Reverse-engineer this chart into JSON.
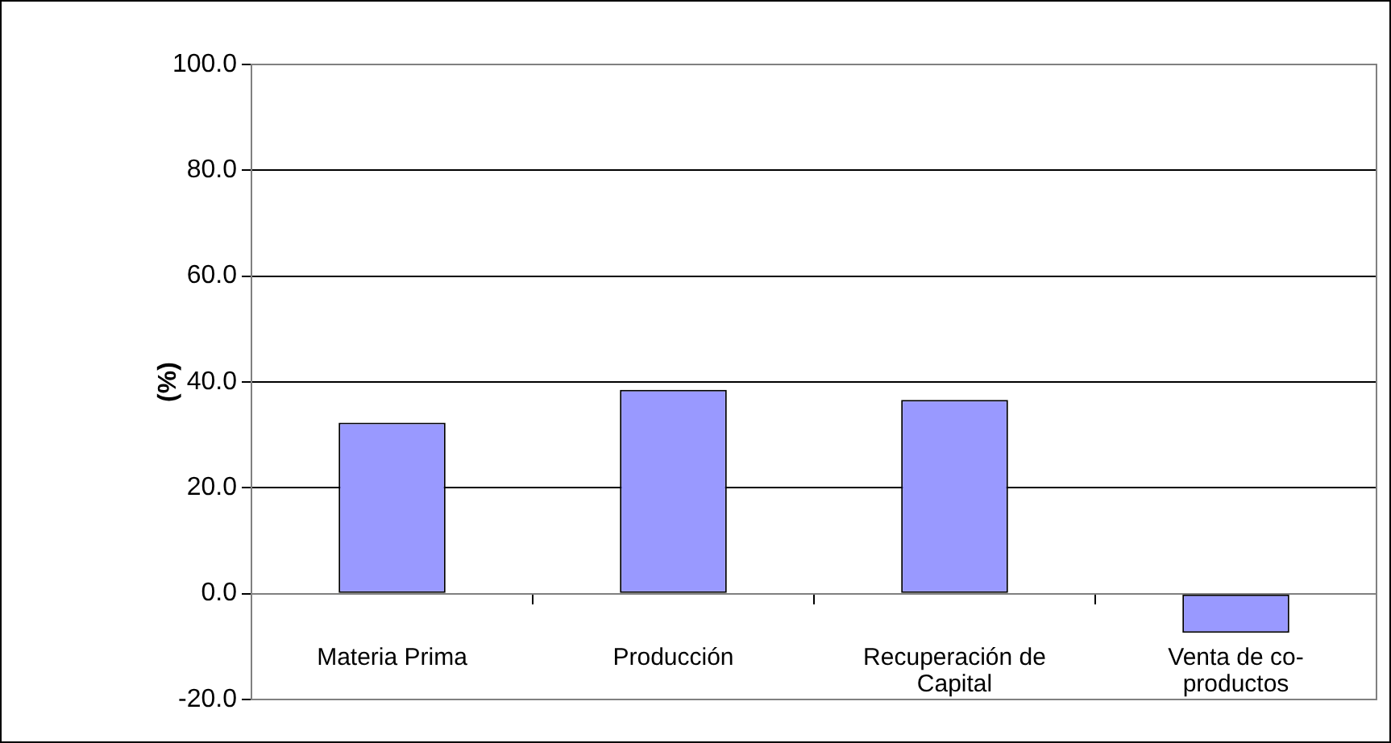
{
  "chart_data": {
    "type": "bar",
    "categories": [
      "Materia Prima",
      "Producción",
      "Recuperación de Capital",
      "Venta de co-productos"
    ],
    "values": [
      32.3,
      38.5,
      36.6,
      -7.4
    ],
    "color": "#9999ff",
    "ylabel": "(%)",
    "ylim": [
      -20,
      100
    ],
    "yticks": [
      {
        "value": -20,
        "label": "-20.0"
      },
      {
        "value": 0,
        "label": "0.0"
      },
      {
        "value": 20,
        "label": "20.0"
      },
      {
        "value": 40,
        "label": "40.0"
      },
      {
        "value": 60,
        "label": "60.0"
      },
      {
        "value": 80,
        "label": "80.0"
      },
      {
        "value": 100,
        "label": "100.0"
      }
    ],
    "grid": "y",
    "legend": false
  }
}
